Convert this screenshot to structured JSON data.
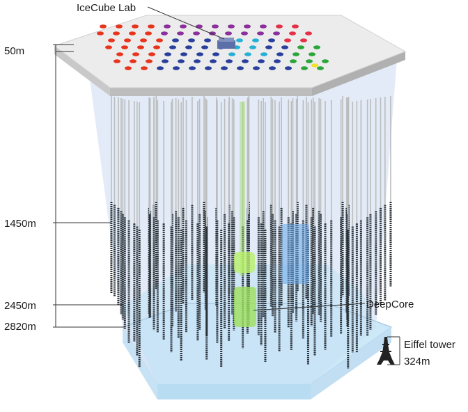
{
  "labels": {
    "lab": "IceCube Lab",
    "depth_50": "50m",
    "depth_1450": "1450m",
    "depth_2450": "2450m",
    "depth_2820": "2820m",
    "deepcore": "DeepCore",
    "eiffel": "Eiffel tower",
    "eiffel_height": "324m"
  },
  "colors": {
    "surface_top": "#ececec",
    "surface_side": "#bdbdbd",
    "ice_volume": "#d8e4f4",
    "bedrock_layer": "#cde8f7",
    "string_cable": "#bcbcbc",
    "detector_string": "#2b3238",
    "deepcore_green": "#9bdc62",
    "dot_colors": [
      "#e8341c",
      "#283f9c",
      "#8a2f9c",
      "#27b0d6",
      "#e53047",
      "#2aa53a",
      "#f2e02a"
    ]
  }
}
